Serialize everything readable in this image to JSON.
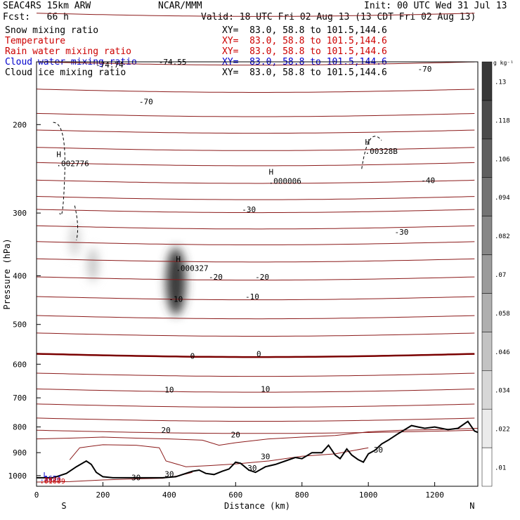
{
  "header": {
    "model": "SEAC4RS 15km ARW",
    "org": "NCAR/MMM",
    "init": "Init: 00 UTC Wed 31 Jul 13",
    "fcst": "Fcst:   66 h",
    "valid": "Valid: 18 UTC Fri 02 Aug 13 (13 CDT Fri 02 Aug 13)"
  },
  "fields": [
    {
      "label": "Snow mixing ratio",
      "xy": "XY=  83.0, 58.8 to 101.5,144.6",
      "color": "#000000"
    },
    {
      "label": "Temperature",
      "xy": "XY=  83.0, 58.8 to 101.5,144.6",
      "color": "#cc0000"
    },
    {
      "label": "Rain water mixing ratio",
      "xy": "XY=  83.0, 58.8 to 101.5,144.6",
      "color": "#cc0000"
    },
    {
      "label": "Cloud water mixing ratio",
      "xy": "XY=  83.0, 58.8 to 101.5,144.6",
      "color": "#0000cc"
    },
    {
      "label": "Cloud ice mixing ratio",
      "xy": "XY=  83.0, 58.8 to 101.5,144.6",
      "color": "#000000"
    }
  ],
  "chart_data": {
    "type": "contour-cross-section",
    "xlabel": "Distance (km)",
    "ylabel": "Pressure (hPa)",
    "xlim": [
      0,
      1330
    ],
    "ylim": [
      1050,
      150
    ],
    "yscale": "log",
    "xticks": [
      0,
      200,
      400,
      600,
      800,
      1000,
      1200
    ],
    "yticks": [
      200,
      300,
      400,
      500,
      600,
      700,
      800,
      900,
      1000
    ],
    "x_end_labels": {
      "left": "S",
      "right": "N"
    },
    "colorbar": {
      "unit": "g kg⁻¹",
      "levels": [
        0.01,
        0.022,
        0.034,
        0.046,
        0.058,
        0.07,
        0.082,
        0.094,
        0.106,
        0.118,
        0.13
      ]
    },
    "temperature_contours": [
      {
        "label": "-70",
        "label_x": 330,
        "label_p": 180
      },
      {
        "label": "-40",
        "label_x": 1180,
        "label_p": 258
      },
      {
        "label": "-30",
        "label_x": 640,
        "label_p": 295
      },
      {
        "label": "-30",
        "label_x": 1100,
        "label_p": 327
      },
      {
        "label": "-20",
        "label_x": 540,
        "label_p": 402
      },
      {
        "label": "-20",
        "label_x": 680,
        "label_p": 402
      },
      {
        "label": "-10",
        "label_x": 420,
        "label_p": 445
      },
      {
        "label": "-10",
        "label_x": 650,
        "label_p": 440
      },
      {
        "label": "0",
        "label_x": 470,
        "label_p": 578
      },
      {
        "label": "0",
        "label_x": 670,
        "label_p": 572
      },
      {
        "label": "10",
        "label_x": 400,
        "label_p": 674
      },
      {
        "label": "10",
        "label_x": 690,
        "label_p": 672
      },
      {
        "label": "20",
        "label_x": 390,
        "label_p": 812
      },
      {
        "label": "20",
        "label_x": 600,
        "label_p": 828
      },
      {
        "label": "30",
        "label_x": 650,
        "label_p": 965
      },
      {
        "label": "30",
        "label_x": 690,
        "label_p": 915
      },
      {
        "label": "30",
        "label_x": 300,
        "label_p": 1009
      },
      {
        "label": "30",
        "label_x": 400,
        "label_p": 992
      },
      {
        "label": "30",
        "label_x": 1030,
        "label_p": 888
      }
    ],
    "top_labels": [
      {
        "text": "-74.74",
        "x": 220,
        "p": 152
      },
      {
        "text": "-74.55",
        "x": 410,
        "p": 150
      },
      {
        "text": "-70",
        "x": 1170,
        "p": 155
      }
    ],
    "maxima": [
      {
        "marker": "H",
        "value": ".002776",
        "x": 60,
        "p": 238
      },
      {
        "marker": "H",
        "value": ".000327",
        "x": 420,
        "p": 385
      },
      {
        "marker": "H",
        "value": ".000006",
        "x": 700,
        "p": 258
      },
      {
        "marker": "H",
        "value": ".00328B",
        "x": 990,
        "p": 225
      }
    ],
    "left_edge_labels": [
      {
        "text": "L",
        "x": 20,
        "p": 994,
        "color": "#0000cc"
      },
      {
        "text": ".1654",
        "x": 10,
        "p": 1010,
        "color": "#0000cc"
      },
      {
        "text": ".2872",
        "x": 10,
        "p": 1018,
        "color": "#cc0000"
      },
      {
        "text": ".01609",
        "x": 10,
        "p": 1024,
        "color": "#cc0000"
      }
    ],
    "terrain": [
      [
        0,
        1010
      ],
      [
        50,
        1010
      ],
      [
        90,
        990
      ],
      [
        120,
        960
      ],
      [
        150,
        935
      ],
      [
        165,
        950
      ],
      [
        180,
        985
      ],
      [
        200,
        1005
      ],
      [
        230,
        1010
      ],
      [
        300,
        1010
      ],
      [
        380,
        1010
      ],
      [
        420,
        1005
      ],
      [
        450,
        990
      ],
      [
        470,
        980
      ],
      [
        490,
        975
      ],
      [
        510,
        990
      ],
      [
        535,
        995
      ],
      [
        560,
        980
      ],
      [
        580,
        970
      ],
      [
        600,
        940
      ],
      [
        615,
        945
      ],
      [
        640,
        975
      ],
      [
        660,
        985
      ],
      [
        690,
        960
      ],
      [
        720,
        950
      ],
      [
        750,
        935
      ],
      [
        780,
        920
      ],
      [
        800,
        925
      ],
      [
        830,
        900
      ],
      [
        860,
        900
      ],
      [
        880,
        870
      ],
      [
        900,
        910
      ],
      [
        915,
        925
      ],
      [
        935,
        885
      ],
      [
        950,
        910
      ],
      [
        970,
        930
      ],
      [
        985,
        940
      ],
      [
        1000,
        905
      ],
      [
        1020,
        890
      ],
      [
        1040,
        865
      ],
      [
        1060,
        850
      ],
      [
        1090,
        825
      ],
      [
        1110,
        810
      ],
      [
        1130,
        795
      ],
      [
        1150,
        800
      ],
      [
        1170,
        805
      ],
      [
        1200,
        800
      ],
      [
        1240,
        810
      ],
      [
        1270,
        805
      ],
      [
        1300,
        780
      ],
      [
        1320,
        815
      ],
      [
        1330,
        820
      ]
    ],
    "cloud_ice_blobs": [
      {
        "x": 420,
        "p": 410,
        "intensity": 0.13
      },
      {
        "x": 170,
        "p": 380,
        "intensity": 0.04
      },
      {
        "x": 115,
        "p": 340,
        "intensity": 0.03
      }
    ]
  }
}
